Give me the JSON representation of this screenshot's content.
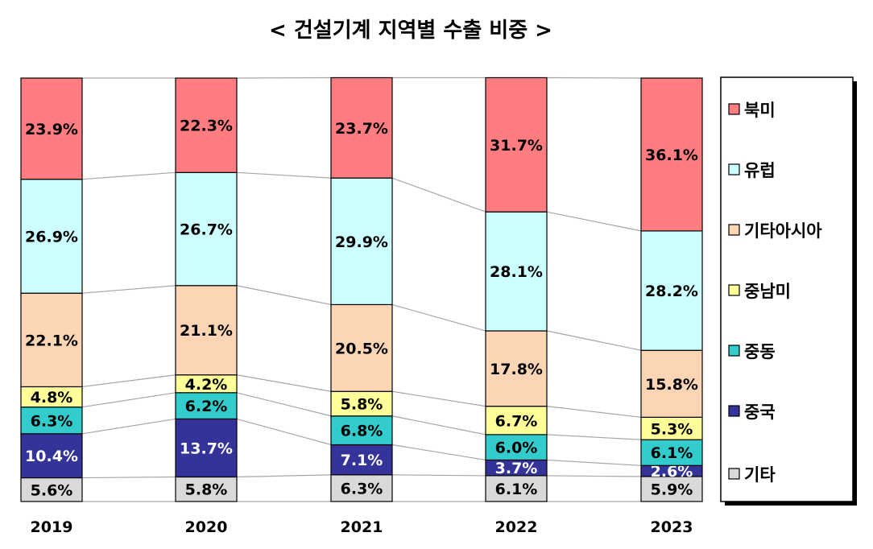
{
  "chart_data": {
    "type": "bar",
    "stacked": true,
    "normalized": "100%",
    "title": "< 건설기계 지역별 수출 비중 >",
    "categories": [
      "2019",
      "2020",
      "2021",
      "2022",
      "2023"
    ],
    "series": [
      {
        "name": "기타",
        "color": "#d9d9d9",
        "label_color": "#000000",
        "values": [
          5.6,
          5.8,
          6.3,
          6.1,
          5.9
        ]
      },
      {
        "name": "중국",
        "color": "#333399",
        "label_color": "#ffffff",
        "values": [
          10.4,
          13.7,
          7.1,
          3.7,
          2.6
        ]
      },
      {
        "name": "중동",
        "color": "#33cccc",
        "label_color": "#000000",
        "values": [
          6.3,
          6.2,
          6.8,
          6.0,
          6.1
        ]
      },
      {
        "name": "중남미",
        "color": "#ffff99",
        "label_color": "#000000",
        "values": [
          4.8,
          4.2,
          5.8,
          6.7,
          5.3
        ]
      },
      {
        "name": "기타아시아",
        "color": "#fcd5b4",
        "label_color": "#000000",
        "values": [
          22.1,
          21.1,
          20.5,
          17.8,
          15.8
        ]
      },
      {
        "name": "유럽",
        "color": "#ccffff",
        "label_color": "#000000",
        "values": [
          26.9,
          26.7,
          29.9,
          28.1,
          28.2
        ]
      },
      {
        "name": "북미",
        "color": "#ff7c80",
        "label_color": "#000000",
        "values": [
          23.9,
          22.3,
          23.7,
          31.7,
          36.1
        ]
      }
    ],
    "value_format": "{v}%",
    "legend": {
      "position": "right",
      "order": [
        "북미",
        "유럽",
        "기타아시아",
        "중남미",
        "중동",
        "중국",
        "기타"
      ]
    },
    "series_lines": true,
    "grid": false
  }
}
